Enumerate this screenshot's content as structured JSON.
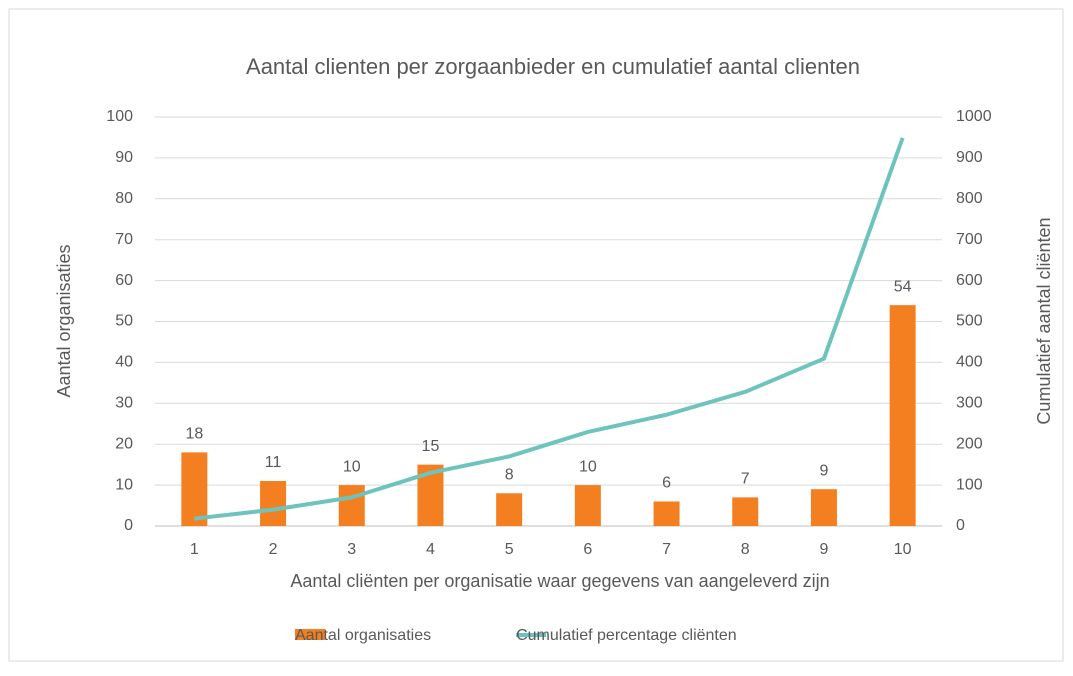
{
  "chart_data": {
    "type": "bar_line",
    "title": "Aantal clienten per zorgaanbieder en cumulatief aantal clienten",
    "xlabel": "Aantal cliënten per organisatie waar gegevens van aangeleverd zijn",
    "ylabel": "Aantal organisaties",
    "y2label": "Cumulatief aantal cliënten",
    "categories": [
      "1",
      "2",
      "3",
      "4",
      "5",
      "6",
      "7",
      "8",
      "9",
      "10"
    ],
    "series": [
      {
        "name": "Aantal organisaties",
        "color": "#f47f20",
        "type": "bar",
        "values": [
          18,
          11,
          10,
          15,
          8,
          10,
          6,
          7,
          9,
          54
        ]
      },
      {
        "name": "Cumulatief percentage cliënten",
        "color": "#6ec4bd",
        "type": "line",
        "axis": "y2",
        "values": [
          18,
          40,
          70,
          130,
          170,
          230,
          272,
          328,
          409,
          949
        ]
      }
    ],
    "ylim": [
      0,
      100
    ],
    "yticks": [
      0,
      10,
      20,
      30,
      40,
      50,
      60,
      70,
      80,
      90,
      100
    ],
    "y2lim": [
      0,
      1000
    ],
    "y2ticks": [
      0,
      100,
      200,
      300,
      400,
      500,
      600,
      700,
      800,
      900,
      1000
    ],
    "grid": true,
    "legend": "bottom"
  }
}
